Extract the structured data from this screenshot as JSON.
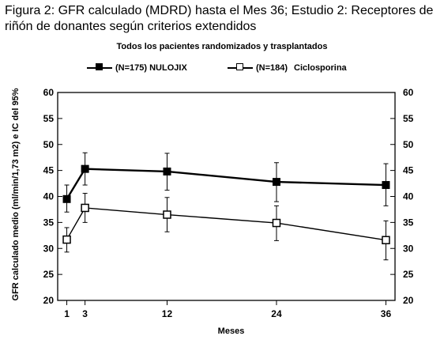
{
  "figure": {
    "title": "Figura 2: GFR calculado (MDRD) hasta el Mes 36; Estudio 2: Receptores de riñón de donantes según criterios extendidos",
    "subtitle": "Todos los pacientes randomizados y trasplantados"
  },
  "chart_data": {
    "type": "line",
    "title": "Todos los pacientes randomizados y trasplantados",
    "xlabel": "Meses",
    "ylabel": "GFR calculado medio (ml/min/1,73 m2) e IC del 95%",
    "x_ticks": [
      1,
      3,
      12,
      24,
      36
    ],
    "y_ticks": [
      20,
      25,
      30,
      35,
      40,
      45,
      50,
      55,
      60
    ],
    "y_ticks_right": [
      20,
      25,
      30,
      35,
      40,
      45,
      50,
      55,
      60
    ],
    "xlim": [
      0,
      37
    ],
    "ylim": [
      20,
      60
    ],
    "grid": false,
    "legend_position": "top",
    "series": [
      {
        "name": "(N=175) NULOJIX",
        "legend_n": "(N=175)",
        "legend_label": "NULOJIX",
        "marker": "filled-square",
        "x": [
          1,
          3,
          12,
          24,
          36
        ],
        "y": [
          39.5,
          45.3,
          44.8,
          42.8,
          42.2
        ],
        "ci_low": [
          37.0,
          42.2,
          41.2,
          39.0,
          38.2
        ],
        "ci_high": [
          42.2,
          48.4,
          48.3,
          46.5,
          46.3
        ]
      },
      {
        "name": "(N=184) Ciclosporina",
        "legend_n": "(N=184)",
        "legend_label": "Ciclosporina",
        "marker": "open-square",
        "x": [
          1,
          3,
          12,
          24,
          36
        ],
        "y": [
          31.7,
          37.8,
          36.5,
          34.9,
          31.6
        ],
        "ci_low": [
          29.3,
          35.0,
          33.2,
          31.5,
          27.8
        ],
        "ci_high": [
          34.0,
          40.6,
          39.8,
          38.2,
          35.3
        ]
      }
    ]
  }
}
